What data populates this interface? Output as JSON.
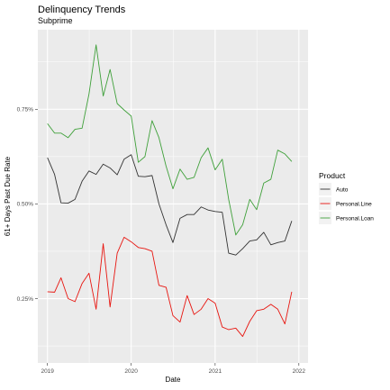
{
  "chart_data": {
    "type": "line",
    "title": "Delinquency Trends",
    "subtitle": "Subprime",
    "xlabel": "Date",
    "ylabel": "61+ Days Past Due Rate",
    "x_ticks": [
      "2019",
      "2020",
      "2021",
      "2022"
    ],
    "y_ticks": [
      "0.25%",
      "0.50%",
      "0.75%"
    ],
    "y_tick_values": [
      0.25,
      0.5,
      0.75
    ],
    "xlim": [
      "2018-11-20",
      "2022-02-10"
    ],
    "ylim": [
      0.08,
      0.96
    ],
    "grid": true,
    "legend_position": "right",
    "legend_title": "Product",
    "x": [
      "2019-01",
      "2019-02",
      "2019-03",
      "2019-04",
      "2019-05",
      "2019-06",
      "2019-07",
      "2019-08",
      "2019-09",
      "2019-10",
      "2019-11",
      "2019-12",
      "2020-01",
      "2020-02",
      "2020-03",
      "2020-04",
      "2020-05",
      "2020-06",
      "2020-07",
      "2020-08",
      "2020-09",
      "2020-10",
      "2020-11",
      "2020-12",
      "2021-01",
      "2021-02",
      "2021-03",
      "2021-04",
      "2021-05",
      "2021-06",
      "2021-07",
      "2021-08",
      "2021-09",
      "2021-10",
      "2021-11",
      "2021-12"
    ],
    "series": [
      {
        "name": "Auto",
        "color": "#333333",
        "values": [
          0.622,
          0.578,
          0.503,
          0.502,
          0.512,
          0.56,
          0.587,
          0.578,
          0.605,
          0.595,
          0.577,
          0.618,
          0.63,
          0.573,
          0.572,
          0.575,
          0.5,
          0.445,
          0.398,
          0.462,
          0.472,
          0.472,
          0.492,
          0.484,
          0.48,
          0.478,
          0.37,
          0.365,
          0.382,
          0.402,
          0.405,
          0.425,
          0.392,
          0.398,
          0.402,
          0.455
        ]
      },
      {
        "name": "Personal.Line",
        "color": "#e8150f",
        "values": [
          0.268,
          0.267,
          0.305,
          0.25,
          0.242,
          0.29,
          0.317,
          0.222,
          0.395,
          0.228,
          0.37,
          0.412,
          0.4,
          0.385,
          0.382,
          0.375,
          0.285,
          0.28,
          0.205,
          0.188,
          0.258,
          0.208,
          0.222,
          0.25,
          0.238,
          0.175,
          0.168,
          0.172,
          0.15,
          0.19,
          0.218,
          0.222,
          0.235,
          0.222,
          0.183,
          0.268
        ]
      },
      {
        "name": "Personal.Loan",
        "color": "#3fa03a",
        "values": [
          0.712,
          0.687,
          0.687,
          0.675,
          0.697,
          0.7,
          0.79,
          0.92,
          0.785,
          0.855,
          0.765,
          0.748,
          0.732,
          0.61,
          0.625,
          0.72,
          0.675,
          0.6,
          0.54,
          0.592,
          0.565,
          0.57,
          0.622,
          0.648,
          0.59,
          0.618,
          0.512,
          0.418,
          0.445,
          0.512,
          0.485,
          0.555,
          0.565,
          0.642,
          0.632,
          0.612
        ]
      }
    ]
  }
}
